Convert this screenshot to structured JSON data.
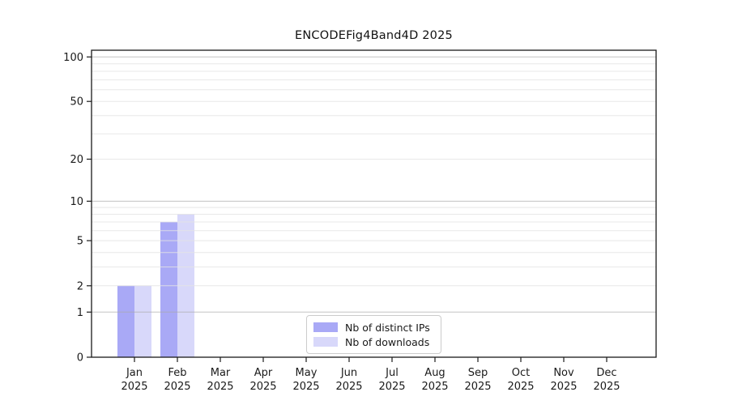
{
  "chart_data": {
    "type": "bar",
    "title": "ENCODEFig4Band4D 2025",
    "categories": [
      "Jan",
      "Feb",
      "Mar",
      "Apr",
      "May",
      "Jun",
      "Jul",
      "Aug",
      "Sep",
      "Oct",
      "Nov",
      "Dec"
    ],
    "category_year": "2025",
    "series": [
      {
        "name": "Nb of distinct IPs",
        "color": "#a9a9f6",
        "values": [
          2,
          7,
          0,
          0,
          0,
          0,
          0,
          0,
          0,
          0,
          0,
          0
        ]
      },
      {
        "name": "Nb of downloads",
        "color": "#d8d8fa",
        "values": [
          2,
          8,
          0,
          0,
          0,
          0,
          0,
          0,
          0,
          0,
          0,
          0
        ]
      }
    ],
    "y_scale": "log1p",
    "ylim": [
      0,
      111
    ],
    "y_ticks": [
      0,
      1,
      2,
      5,
      10,
      20,
      50,
      100
    ],
    "y_tick_labels": [
      "0",
      "1",
      "2",
      "5",
      "10",
      "20",
      "50",
      "100"
    ],
    "grid": {
      "major": [
        1,
        10,
        100
      ],
      "minor": [
        2,
        3,
        4,
        5,
        6,
        7,
        8,
        9,
        20,
        30,
        40,
        50,
        60,
        70,
        80,
        90
      ]
    },
    "legend_position": "bottom-center",
    "colors": {
      "grid_major": "#aaaaaa",
      "grid_minor": "#e4e4e4",
      "spine": "#1a1a1a",
      "text": "#1a1a1a"
    }
  }
}
